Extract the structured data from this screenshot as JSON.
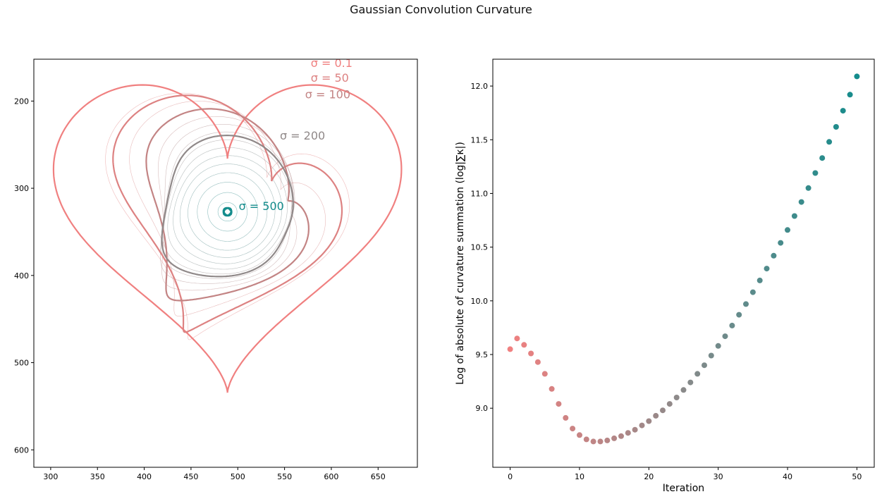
{
  "figure": {
    "title": "Gaussian Convolution Curvature"
  },
  "colors": {
    "start": "#f08080",
    "mid": "#8a8a8a",
    "end": "#148c8c",
    "axis": "#000000"
  },
  "chart_data": [
    {
      "type": "line",
      "title": "",
      "xlabel": "",
      "ylabel": "",
      "xlim": [
        282,
        692
      ],
      "ylim": [
        620,
        152
      ],
      "y_inverted": true,
      "xticks": [
        300,
        350,
        400,
        450,
        500,
        550,
        600,
        650
      ],
      "yticks": [
        200,
        300,
        400,
        500,
        600
      ],
      "grid": false,
      "center": [
        489,
        327
      ],
      "outline_sigmas": [
        0.1,
        50,
        100,
        200,
        500
      ],
      "outline_labels": [
        {
          "text": "σ = 0.1",
          "sigma": 0.1,
          "x": 578,
          "y": 161
        },
        {
          "text": "σ = 50",
          "sigma": 50,
          "x": 578,
          "y": 178
        },
        {
          "text": "σ = 100",
          "sigma": 100,
          "x": 572,
          "y": 197
        },
        {
          "text": "σ = 200",
          "sigma": 200,
          "x": 545,
          "y": 244
        },
        {
          "text": "σ = 500",
          "sigma": 500,
          "x": 501,
          "y": 325
        }
      ],
      "thin_contour_count": 14
    },
    {
      "type": "scatter",
      "title": "",
      "xlabel": "Iteration",
      "ylabel": "Log of absolute of curvature summation (log|∑κ|)",
      "xlim": [
        -2.5,
        52.5
      ],
      "ylim": [
        8.45,
        12.25
      ],
      "xticks": [
        0,
        10,
        20,
        30,
        40,
        50
      ],
      "yticks": [
        9.0,
        9.5,
        10.0,
        10.5,
        11.0,
        11.5,
        12.0
      ],
      "grid": false,
      "x": [
        0,
        1,
        2,
        3,
        4,
        5,
        6,
        7,
        8,
        9,
        10,
        11,
        12,
        13,
        14,
        15,
        16,
        17,
        18,
        19,
        20,
        21,
        22,
        23,
        24,
        25,
        26,
        27,
        28,
        29,
        30,
        31,
        32,
        33,
        34,
        35,
        36,
        37,
        38,
        39,
        40,
        41,
        42,
        43,
        44,
        45,
        46,
        47,
        48,
        49,
        50
      ],
      "y": [
        9.55,
        9.65,
        9.59,
        9.51,
        9.43,
        9.32,
        9.18,
        9.04,
        8.91,
        8.81,
        8.75,
        8.71,
        8.69,
        8.69,
        8.7,
        8.72,
        8.74,
        8.77,
        8.8,
        8.84,
        8.88,
        8.93,
        8.98,
        9.04,
        9.1,
        9.17,
        9.24,
        9.32,
        9.4,
        9.49,
        9.58,
        9.67,
        9.77,
        9.87,
        9.97,
        10.08,
        10.19,
        10.3,
        10.42,
        10.54,
        10.66,
        10.79,
        10.92,
        11.05,
        11.19,
        11.33,
        11.48,
        11.62,
        11.77,
        11.92,
        12.09
      ]
    }
  ]
}
